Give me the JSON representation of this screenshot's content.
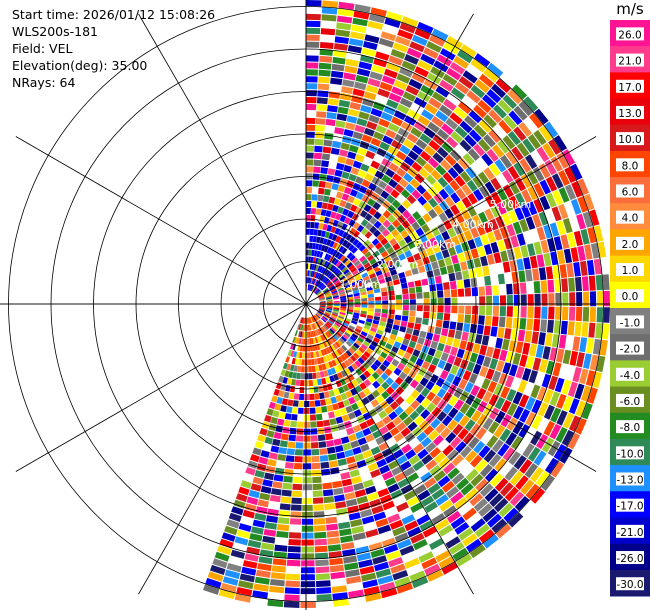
{
  "header": {
    "start_time": "Start time: 2026/01/12 15:08:26",
    "instrument": "WLS200s-181",
    "field": "Field: VEL",
    "elevation": "Elevation(deg): 35.00",
    "nrays": "NRays: 64"
  },
  "colorbar": {
    "unit": "m/s",
    "ticks": [
      "26.0",
      "21.0",
      "17.0",
      "13.0",
      "10.0",
      "8.0",
      "6.0",
      "4.0",
      "2.0",
      "1.0",
      "0.0",
      "-1.0",
      "-2.0",
      "-4.0",
      "-6.0",
      "-8.0",
      "-10.0",
      "-13.0",
      "-17.0",
      "-21.0",
      "-26.0",
      "-30.0"
    ],
    "colors": [
      "#ff1493",
      "#ff3c8c",
      "#ff0000",
      "#e8000a",
      "#d7191c",
      "#ff4500",
      "#fa6e3c",
      "#ff8c3c",
      "#ffa500",
      "#ffd700",
      "#ffff00",
      "#808080",
      "#6e6e6e",
      "#9acd32",
      "#6b8e23",
      "#228b22",
      "#2e8b57",
      "#1e90ff",
      "#0000ff",
      "#0000cd",
      "#00008b",
      "#191970"
    ]
  },
  "chart_data": {
    "type": "heatmap",
    "projection": "polar-ppi",
    "field": "VEL",
    "unit": "m/s",
    "nrays": 64,
    "elevation_deg": 35.0,
    "sector_deg": [
      0,
      200
    ],
    "range_rings_km": [
      1,
      2,
      3,
      4,
      5,
      6,
      7
    ],
    "ring_labels": [
      "1.00km",
      "2.00km",
      "3.00km",
      "4.00km",
      "5.00km"
    ],
    "spoke_step_deg": 30,
    "value_range": [
      -30,
      26
    ],
    "colorbar_ticks": [
      26,
      21,
      17,
      13,
      10,
      8,
      6,
      4,
      2,
      1,
      0,
      -1,
      -2,
      -4,
      -6,
      -8,
      -10,
      -13,
      -17,
      -21,
      -26,
      -30
    ],
    "values": "noise-like velocity field, values span -30 to 26 m/s across all range gates"
  }
}
